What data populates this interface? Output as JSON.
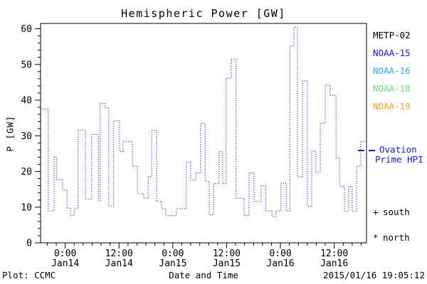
{
  "title": "Hemispheric Power [GW]",
  "footer": {
    "left": "Plot: CCMC",
    "center": "Date and Time",
    "right": "2015/01/16 19:05:12"
  },
  "legend": {
    "satellites": [
      {
        "label": "METP-02",
        "color": "#000000"
      },
      {
        "label": "NOAA-15",
        "color": "#1818dd"
      },
      {
        "label": "NOAA-16",
        "color": "#2fa8ff"
      },
      {
        "label": "NOAA-18",
        "color": "#5fe37d"
      },
      {
        "label": "NOAA-19",
        "color": "#ffa020"
      }
    ],
    "ovation": {
      "line1": "Ovation",
      "line2": "Prime HPI",
      "color": "#1818dd"
    },
    "markers": [
      {
        "symbol": "+",
        "label": "south"
      },
      {
        "symbol": "*",
        "label": "north"
      }
    ]
  },
  "chart_data": {
    "type": "line",
    "style": "step-post",
    "line_style": "dotted",
    "title": "Hemispheric Power [GW]",
    "xlabel": "Date and Time",
    "ylabel": "P [GW]",
    "grid": false,
    "legend_position": "right-outside",
    "series_name": "Ovation Prime HPI",
    "series_color": "#1818dd",
    "x_unit": "hours relative to Jan14 0:00",
    "xlim": [
      -5.5,
      67.2
    ],
    "ylim": [
      0,
      61.5
    ],
    "y_major_ticks": [
      0,
      10,
      20,
      30,
      40,
      50,
      60
    ],
    "y_minor_step": 2,
    "x_major_ticks": [
      {
        "t": 0,
        "time": "0:00",
        "date": "Jan14"
      },
      {
        "t": 12,
        "time": "12:00",
        "date": "Jan14"
      },
      {
        "t": 24,
        "time": "0:00",
        "date": "Jan15"
      },
      {
        "t": 36,
        "time": "12:00",
        "date": "Jan15"
      },
      {
        "t": 48,
        "time": "0:00",
        "date": "Jan16"
      },
      {
        "t": 60,
        "time": "12:00",
        "date": "Jan16"
      }
    ],
    "x_minor_step_hours": 2,
    "t_end": 67.2,
    "steps": [
      [
        -5.5,
        37.5
      ],
      [
        -3.8,
        9.0
      ],
      [
        -2.5,
        24.0
      ],
      [
        -1.9,
        17.8
      ],
      [
        -0.6,
        14.8
      ],
      [
        0.4,
        9.8
      ],
      [
        1.2,
        7.6
      ],
      [
        2.0,
        9.6
      ],
      [
        2.9,
        31.6
      ],
      [
        4.5,
        12.2
      ],
      [
        5.9,
        30.4
      ],
      [
        7.4,
        11.8
      ],
      [
        7.8,
        39.1
      ],
      [
        8.9,
        37.9
      ],
      [
        9.7,
        10.3
      ],
      [
        10.8,
        34.2
      ],
      [
        12.1,
        25.6
      ],
      [
        12.9,
        28.4
      ],
      [
        15.0,
        21.5
      ],
      [
        16.1,
        13.8
      ],
      [
        17.5,
        12.5
      ],
      [
        18.5,
        18.5
      ],
      [
        19.3,
        31.5
      ],
      [
        20.4,
        11.6
      ],
      [
        21.5,
        9.6
      ],
      [
        22.4,
        7.6
      ],
      [
        24.8,
        9.6
      ],
      [
        27.0,
        22.6
      ],
      [
        28.0,
        17.6
      ],
      [
        29.1,
        19.6
      ],
      [
        30.2,
        33.5
      ],
      [
        31.2,
        17.3
      ],
      [
        32.1,
        7.8
      ],
      [
        33.1,
        16.6
      ],
      [
        34.3,
        25.6
      ],
      [
        35.1,
        16.6
      ],
      [
        35.9,
        46.2
      ],
      [
        37.0,
        51.4
      ],
      [
        38.1,
        12.5
      ],
      [
        39.9,
        7.6
      ],
      [
        41.0,
        19.6
      ],
      [
        42.1,
        11.6
      ],
      [
        43.7,
        16.0
      ],
      [
        44.7,
        9.0
      ],
      [
        46.1,
        7.4
      ],
      [
        47.0,
        9.0
      ],
      [
        48.1,
        16.7
      ],
      [
        49.3,
        9.0
      ],
      [
        50.1,
        55.2
      ],
      [
        51.0,
        60.4
      ],
      [
        51.8,
        18.5
      ],
      [
        52.9,
        45.4
      ],
      [
        54.0,
        10.2
      ],
      [
        55.0,
        25.7
      ],
      [
        55.9,
        19.8
      ],
      [
        56.9,
        33.5
      ],
      [
        58.0,
        44.2
      ],
      [
        59.1,
        41.4
      ],
      [
        60.4,
        23.8
      ],
      [
        61.2,
        15.8
      ],
      [
        62.3,
        8.8
      ],
      [
        63.2,
        15.8
      ],
      [
        64.0,
        8.8
      ],
      [
        65.0,
        21.5
      ],
      [
        65.9,
        28.4
      ]
    ]
  }
}
